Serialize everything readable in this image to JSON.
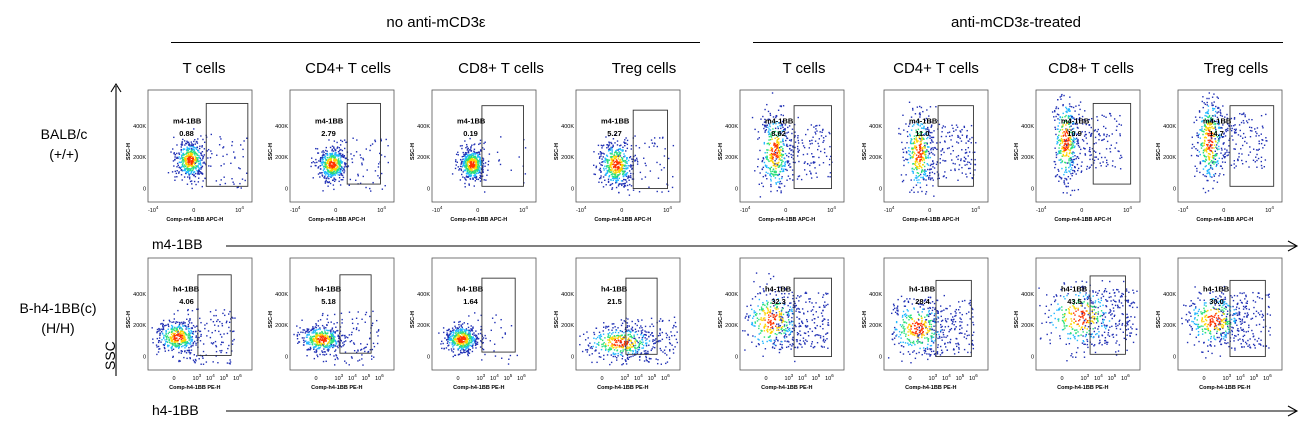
{
  "groups": [
    {
      "title": "no anti-mCD3ε"
    },
    {
      "title": "anti-mCD3ε-treated"
    }
  ],
  "columns": [
    "T cells",
    "CD4+ T cells",
    "CD8+ T cells",
    "Treg cells",
    "T cells",
    "CD4+ T cells",
    "CD8+ T cells",
    "Treg cells"
  ],
  "rows": [
    {
      "label_line1": "BALB/c",
      "label_line2": "(+/+)",
      "gate_label": "m4-1BB",
      "axis_arrow_label": "m4-1BB",
      "x_axis_title": "Comp-m4-1BB APC-H",
      "y_axis_title": "SSC-H",
      "x_ticks": [
        "-10",
        "0",
        "10"
      ],
      "x_tick_sup": [
        "4",
        "",
        "4"
      ],
      "y_ticks": [
        "400K",
        "200K",
        "0"
      ],
      "values": [
        "0.88",
        "2.79",
        "0.19",
        "5.27",
        "8.62",
        "11.0",
        "10.9",
        "14.7"
      ]
    },
    {
      "label_line1": "B-h4-1BB(c)",
      "label_line2": "(H/H)",
      "gate_label": "h4-1BB",
      "axis_arrow_label": "h4-1BB",
      "x_axis_title": "Comp-h4-1BB PE-H",
      "y_axis_title": "SSC-H",
      "x_ticks": [
        "0",
        "10",
        "10",
        "10",
        "10"
      ],
      "x_tick_sup": [
        "",
        "3",
        "4",
        "5",
        "6"
      ],
      "y_ticks": [
        "400K",
        "200K",
        "0"
      ],
      "values": [
        "4.06",
        "5.18",
        "1.64",
        "21.5",
        "32.3",
        "28.4",
        "43.5",
        "30.0"
      ]
    }
  ],
  "y_arrow_label": "SSC",
  "colors": {
    "dots": "#1f2fb4",
    "hot": "#ff3300",
    "warm": "#ffd400",
    "mid": "#29e07a",
    "cool": "#20b7ff"
  }
}
